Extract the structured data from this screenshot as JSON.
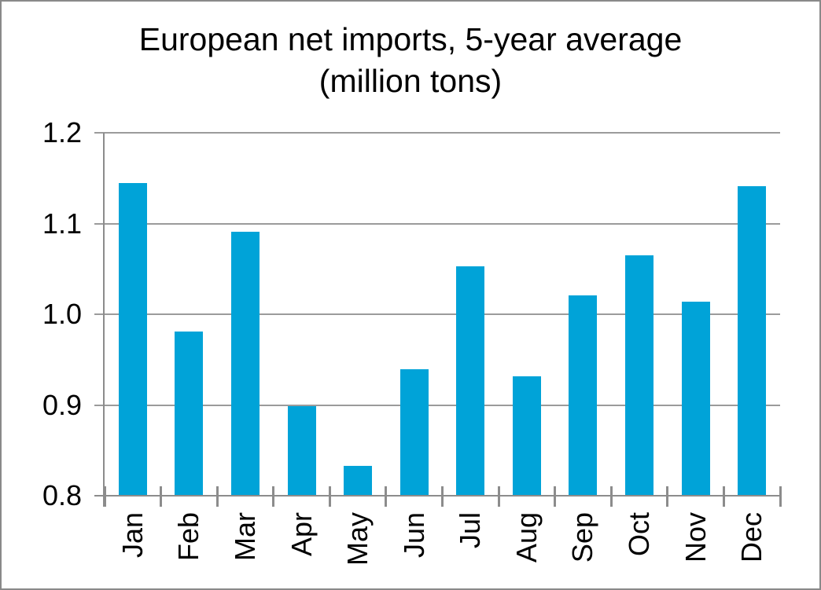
{
  "frame": {
    "background": "#ffffff",
    "border_color": "#898989"
  },
  "chart_data": {
    "type": "bar",
    "title": "European net imports, 5-year average",
    "subtitle": "(million tons)",
    "categories": [
      "Jan",
      "Feb",
      "Mar",
      "Apr",
      "May",
      "Jun",
      "Jul",
      "Aug",
      "Sep",
      "Oct",
      "Nov",
      "Dec"
    ],
    "values": [
      1.145,
      0.981,
      1.091,
      0.899,
      0.833,
      0.939,
      1.053,
      0.932,
      1.021,
      1.065,
      1.014,
      1.141
    ],
    "ylim": [
      0.8,
      1.2
    ],
    "ytick_step": 0.1,
    "ytick_labels": [
      "0.8",
      "0.9",
      "1.0",
      "1.1",
      "1.2"
    ],
    "grid": "horizontal-on",
    "legend": "none",
    "xlabel": "",
    "ylabel": "",
    "x_label_rotation_degrees": 90,
    "bar_color": "#00a3d8",
    "gridline_color": "#9b9b9b",
    "axis_color": "#8c8c8c",
    "text_color": "#000000"
  }
}
